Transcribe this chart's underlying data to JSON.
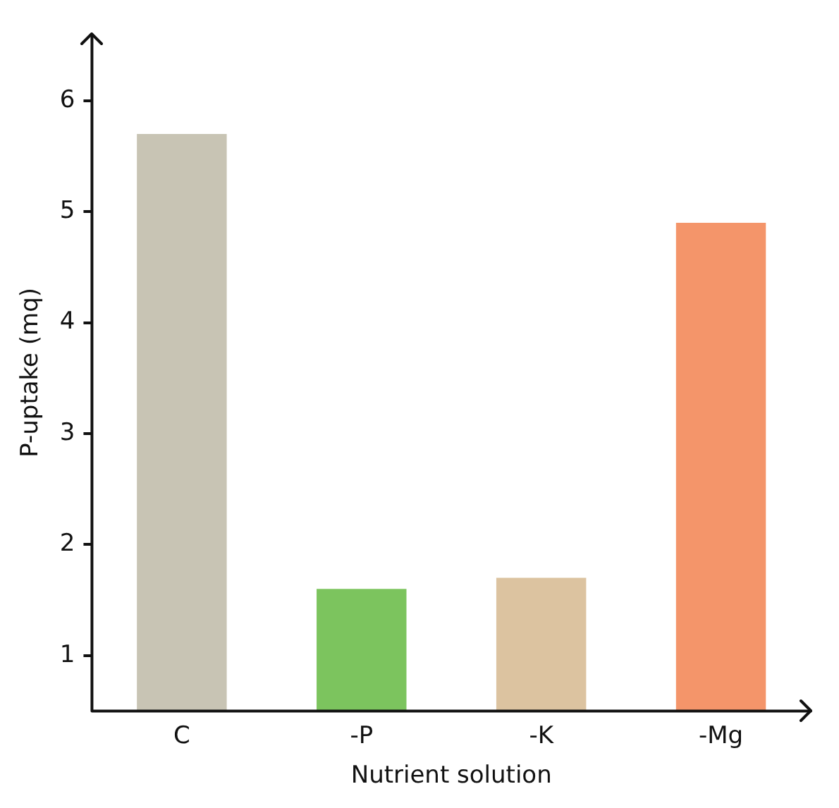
{
  "chart_data": {
    "type": "bar",
    "xlabel": "Nutrient solution",
    "ylabel": "P-uptake (mq)",
    "categories": [
      "C",
      "-P",
      "-K",
      "-Mg"
    ],
    "values": [
      5.7,
      1.6,
      1.7,
      4.9
    ],
    "colors": [
      "#c8c4b4",
      "#7cc45e",
      "#dcc3a0",
      "#f4956a"
    ],
    "ylim": [
      0.5,
      6.6
    ],
    "yticks": [
      1,
      2,
      3,
      4,
      5,
      6
    ],
    "grid": false,
    "legend": false
  }
}
